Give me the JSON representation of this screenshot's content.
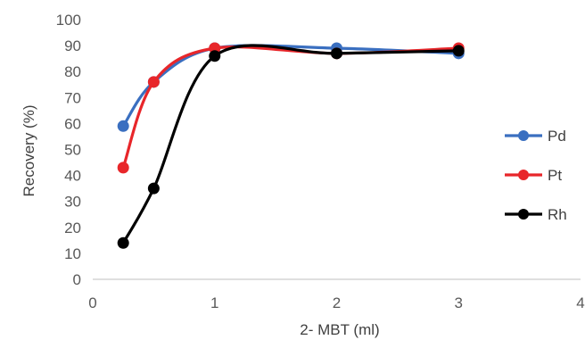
{
  "chart_data": {
    "type": "line",
    "xlabel": "2- MBT (ml)",
    "ylabel": "Recovery (%)",
    "xlim": [
      0,
      4
    ],
    "ylim": [
      0,
      100
    ],
    "xticks": [
      "0",
      "1",
      "2",
      "3",
      "4"
    ],
    "yticks": [
      "0",
      "10",
      "20",
      "30",
      "40",
      "50",
      "60",
      "70",
      "80",
      "90",
      "100"
    ],
    "grid": false,
    "legend_position": "right",
    "smooth": true,
    "series": [
      {
        "name": "Pd",
        "color": "#3a6fc0",
        "x": [
          0.25,
          0.5,
          1,
          2,
          3
        ],
        "y": [
          59,
          76,
          89,
          89,
          87
        ]
      },
      {
        "name": "Pt",
        "color": "#e8262a",
        "x": [
          0.25,
          0.5,
          1,
          2,
          3
        ],
        "y": [
          43,
          76,
          89,
          87,
          89
        ]
      },
      {
        "name": "Rh",
        "color": "#000000",
        "x": [
          0.25,
          0.5,
          1,
          2,
          3
        ],
        "y": [
          14,
          35,
          86,
          87,
          88
        ]
      }
    ]
  }
}
